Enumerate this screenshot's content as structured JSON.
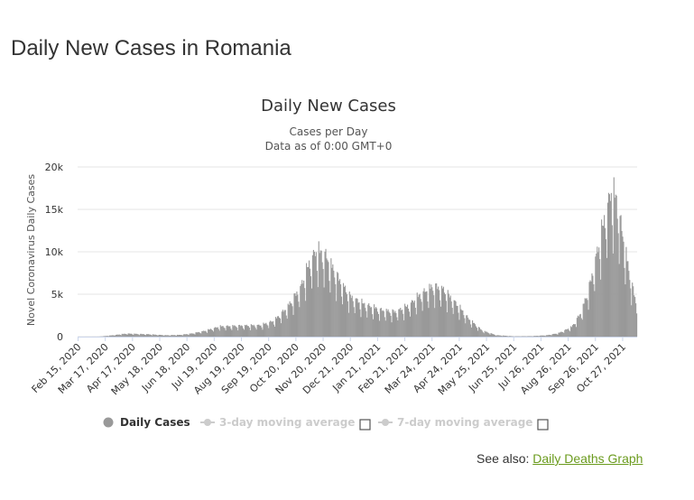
{
  "page": {
    "title": "Daily New Cases in Romania",
    "see_also_label": "See also:",
    "see_also_link": "Daily Deaths Graph"
  },
  "colors": {
    "bars": "#999999",
    "legend_inactive": "#cccccc",
    "link": "#6b9b1e"
  },
  "chart_data": {
    "type": "bar",
    "title": "Daily New Cases",
    "subtitle_line1": "Cases per Day",
    "subtitle_line2": "Data as of 0:00 GMT+0",
    "ylabel": "Novel Coronavirus Daily Cases",
    "xlabel": "",
    "ylim": [
      0,
      20000
    ],
    "y_ticks": [
      {
        "value": 0,
        "label": "0"
      },
      {
        "value": 5000,
        "label": "5k"
      },
      {
        "value": 10000,
        "label": "10k"
      },
      {
        "value": 15000,
        "label": "15k"
      },
      {
        "value": 20000,
        "label": "20k"
      }
    ],
    "x_start_date": "2020-02-15",
    "x_end_date": "2021-11-12",
    "x_tick_labels": [
      {
        "label": "Feb 15, 2020",
        "date": "2020-02-15"
      },
      {
        "label": "Mar 17, 2020",
        "date": "2020-03-17"
      },
      {
        "label": "Apr 17, 2020",
        "date": "2020-04-17"
      },
      {
        "label": "May 18, 2020",
        "date": "2020-05-18"
      },
      {
        "label": "Jun 18, 2020",
        "date": "2020-06-18"
      },
      {
        "label": "Jul 19, 2020",
        "date": "2020-07-19"
      },
      {
        "label": "Aug 19, 2020",
        "date": "2020-08-19"
      },
      {
        "label": "Sep 19, 2020",
        "date": "2020-09-19"
      },
      {
        "label": "Oct 20, 2020",
        "date": "2020-10-20"
      },
      {
        "label": "Nov 20, 2020",
        "date": "2020-11-20"
      },
      {
        "label": "Dec 21, 2020",
        "date": "2020-12-21"
      },
      {
        "label": "Jan 21, 2021",
        "date": "2021-01-21"
      },
      {
        "label": "Feb 21, 2021",
        "date": "2021-02-21"
      },
      {
        "label": "Mar 24, 2021",
        "date": "2021-03-24"
      },
      {
        "label": "Apr 24, 2021",
        "date": "2021-04-24"
      },
      {
        "label": "May 25, 2021",
        "date": "2021-05-25"
      },
      {
        "label": "Jun 25, 2021",
        "date": "2021-06-25"
      },
      {
        "label": "Jul 26, 2021",
        "date": "2021-07-26"
      },
      {
        "label": "Aug 26, 2021",
        "date": "2021-08-26"
      },
      {
        "label": "Sep 26, 2021",
        "date": "2021-09-26"
      },
      {
        "label": "Oct 27, 2021",
        "date": "2021-10-27"
      }
    ],
    "trend_points": [
      {
        "date": "2020-02-15",
        "value": 0
      },
      {
        "date": "2020-03-10",
        "value": 5
      },
      {
        "date": "2020-03-25",
        "value": 150
      },
      {
        "date": "2020-04-10",
        "value": 350
      },
      {
        "date": "2020-05-05",
        "value": 270
      },
      {
        "date": "2020-05-25",
        "value": 160
      },
      {
        "date": "2020-06-10",
        "value": 200
      },
      {
        "date": "2020-06-25",
        "value": 380
      },
      {
        "date": "2020-07-10",
        "value": 700
      },
      {
        "date": "2020-07-25",
        "value": 1150
      },
      {
        "date": "2020-08-20",
        "value": 1250
      },
      {
        "date": "2020-09-10",
        "value": 1300
      },
      {
        "date": "2020-09-25",
        "value": 1800
      },
      {
        "date": "2020-10-10",
        "value": 3300
      },
      {
        "date": "2020-10-25",
        "value": 5500
      },
      {
        "date": "2020-11-05",
        "value": 8500
      },
      {
        "date": "2020-11-12",
        "value": 9700
      },
      {
        "date": "2020-11-22",
        "value": 9300
      },
      {
        "date": "2020-12-05",
        "value": 7000
      },
      {
        "date": "2020-12-20",
        "value": 4600
      },
      {
        "date": "2021-01-05",
        "value": 3700
      },
      {
        "date": "2021-01-25",
        "value": 3000
      },
      {
        "date": "2021-02-10",
        "value": 2800
      },
      {
        "date": "2021-02-25",
        "value": 3500
      },
      {
        "date": "2021-03-10",
        "value": 4700
      },
      {
        "date": "2021-03-25",
        "value": 5700
      },
      {
        "date": "2021-04-05",
        "value": 5400
      },
      {
        "date": "2021-04-20",
        "value": 3800
      },
      {
        "date": "2021-05-05",
        "value": 2000
      },
      {
        "date": "2021-05-20",
        "value": 700
      },
      {
        "date": "2021-06-05",
        "value": 170
      },
      {
        "date": "2021-06-25",
        "value": 40
      },
      {
        "date": "2021-07-15",
        "value": 60
      },
      {
        "date": "2021-08-01",
        "value": 150
      },
      {
        "date": "2021-08-15",
        "value": 400
      },
      {
        "date": "2021-08-30",
        "value": 1100
      },
      {
        "date": "2021-09-10",
        "value": 2800
      },
      {
        "date": "2021-09-20",
        "value": 6000
      },
      {
        "date": "2021-09-30",
        "value": 10500
      },
      {
        "date": "2021-10-08",
        "value": 14000
      },
      {
        "date": "2021-10-14",
        "value": 16500
      },
      {
        "date": "2021-10-20",
        "value": 15500
      },
      {
        "date": "2021-10-27",
        "value": 11500
      },
      {
        "date": "2021-11-03",
        "value": 7500
      },
      {
        "date": "2021-11-12",
        "value": 3500
      }
    ],
    "legend": [
      {
        "name": "Daily Cases",
        "active": true
      },
      {
        "name": "3-day moving average",
        "active": false
      },
      {
        "name": "7-day moving average",
        "active": false
      }
    ]
  }
}
